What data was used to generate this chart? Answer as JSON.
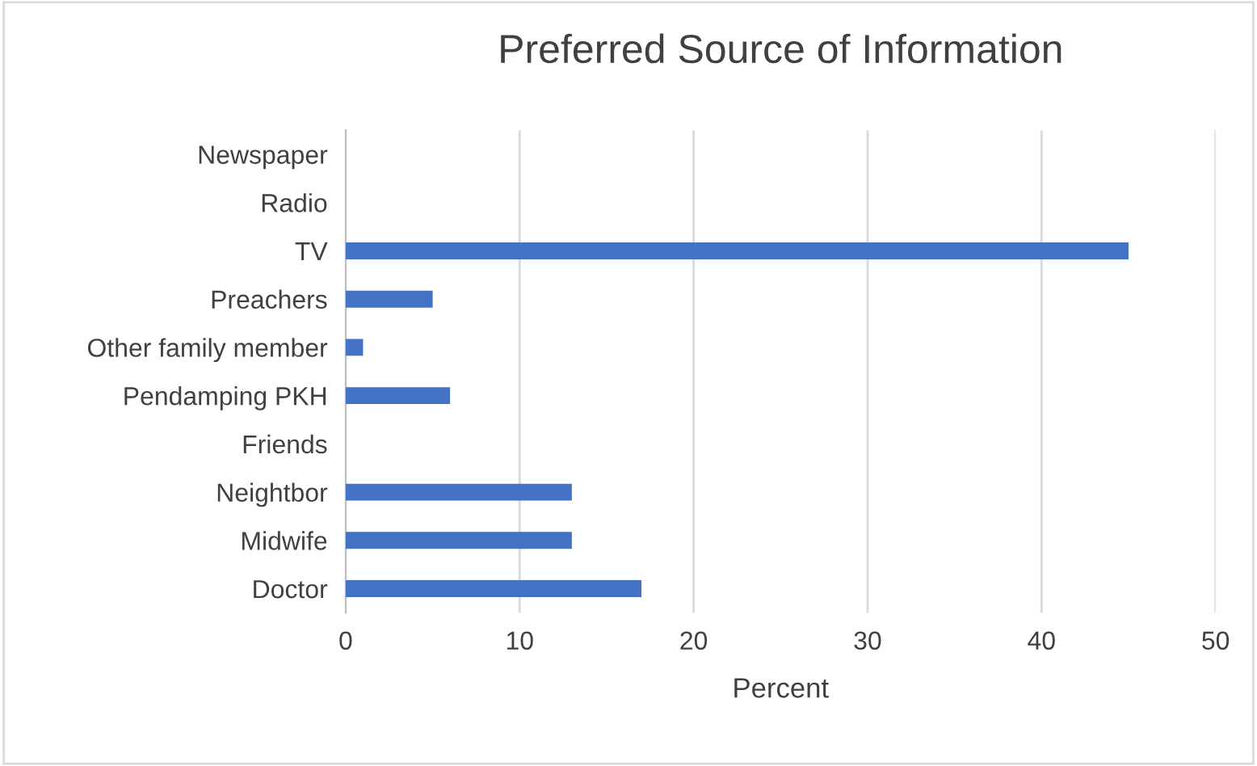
{
  "chart_data": {
    "type": "bar",
    "orientation": "horizontal",
    "title": "Preferred Source of Information",
    "xlabel": "Percent",
    "categories": [
      "Newspaper",
      "Radio",
      "TV",
      "Preachers",
      "Other family member",
      "Pendamping PKH",
      "Friends",
      "Neightbor",
      "Midwife",
      "Doctor"
    ],
    "values": [
      0,
      0,
      45,
      5,
      1,
      6,
      0,
      13,
      13,
      17
    ],
    "color": "#4472c4",
    "xlim": [
      0,
      50
    ],
    "xticks": [
      0,
      10,
      20,
      30,
      40,
      50
    ],
    "grid": "x",
    "legend": false
  }
}
